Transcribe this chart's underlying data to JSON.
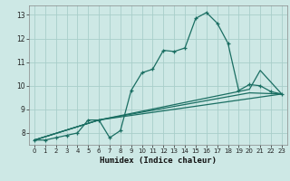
{
  "title": "",
  "xlabel": "Humidex (Indice chaleur)",
  "bg_color": "#cde8e5",
  "grid_color": "#a8ceca",
  "line_color": "#1a6e62",
  "xlim": [
    -0.5,
    23.5
  ],
  "ylim": [
    7.5,
    13.4
  ],
  "xticks": [
    0,
    1,
    2,
    3,
    4,
    5,
    6,
    7,
    8,
    9,
    10,
    11,
    12,
    13,
    14,
    15,
    16,
    17,
    18,
    19,
    20,
    21,
    22,
    23
  ],
  "yticks": [
    8,
    9,
    10,
    11,
    12,
    13
  ],
  "line1_x": [
    0,
    1,
    2,
    3,
    4,
    5,
    6,
    7,
    8,
    9,
    10,
    11,
    12,
    13,
    14,
    15,
    16,
    17,
    18,
    19,
    20,
    21,
    22,
    23
  ],
  "line1_y": [
    7.7,
    7.7,
    7.8,
    7.9,
    8.0,
    8.55,
    8.55,
    7.8,
    8.1,
    9.8,
    10.55,
    10.7,
    11.5,
    11.45,
    11.6,
    12.85,
    13.1,
    12.65,
    11.8,
    9.8,
    10.05,
    10.0,
    9.75,
    9.65
  ],
  "line2_x": [
    0,
    6,
    23
  ],
  "line2_y": [
    7.7,
    8.55,
    9.65
  ],
  "line3_x": [
    0,
    6,
    20,
    23
  ],
  "line3_y": [
    7.7,
    8.55,
    9.7,
    9.65
  ],
  "line4_x": [
    0,
    6,
    20,
    21,
    23
  ],
  "line4_y": [
    7.7,
    8.55,
    9.85,
    10.65,
    9.65
  ]
}
